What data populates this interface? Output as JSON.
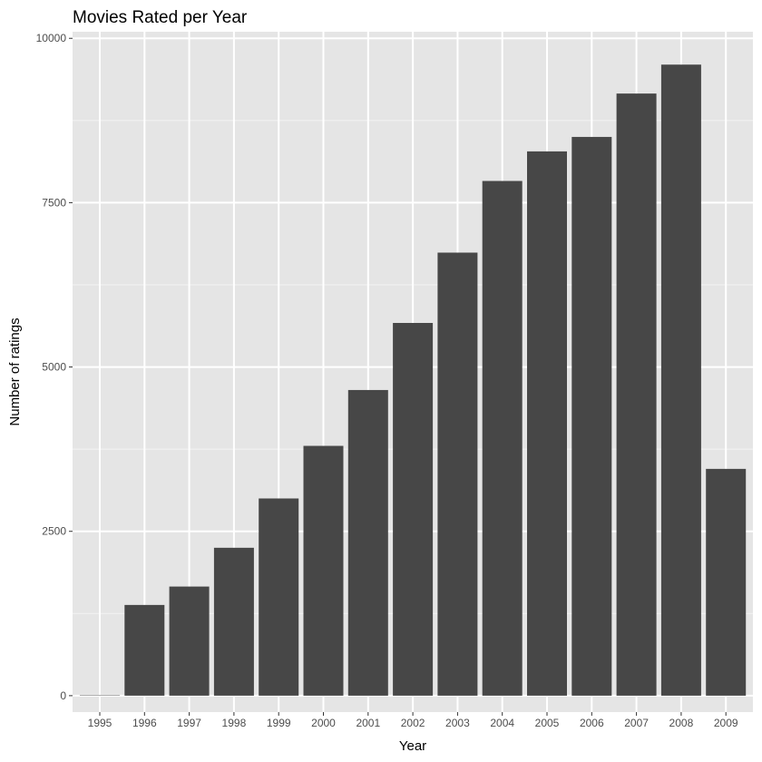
{
  "chart_data": {
    "type": "bar",
    "title": "Movies Rated per Year",
    "xlabel": "Year",
    "ylabel": "Number of ratings",
    "categories": [
      "1995",
      "1996",
      "1997",
      "1998",
      "1999",
      "2000",
      "2001",
      "2002",
      "2003",
      "2004",
      "2005",
      "2006",
      "2007",
      "2008",
      "2009"
    ],
    "values": [
      6,
      1380,
      1660,
      2250,
      3000,
      3800,
      4650,
      5670,
      6740,
      7830,
      8280,
      8500,
      9160,
      9600,
      3450
    ],
    "ylim": [
      -250,
      10100
    ],
    "yticks": [
      0,
      2500,
      5000,
      7500,
      10000
    ],
    "ytick_labels": [
      "0",
      "2500",
      "5000",
      "7500",
      "10000"
    ],
    "grid": true,
    "legend": "none",
    "colors": {
      "bar": "#474747",
      "panel": "#e5e5e5",
      "grid_major": "#ffffff",
      "grid_minor": "#f2f2f2",
      "tick_text": "#4d4d4d",
      "tick_mark": "#333333"
    }
  }
}
